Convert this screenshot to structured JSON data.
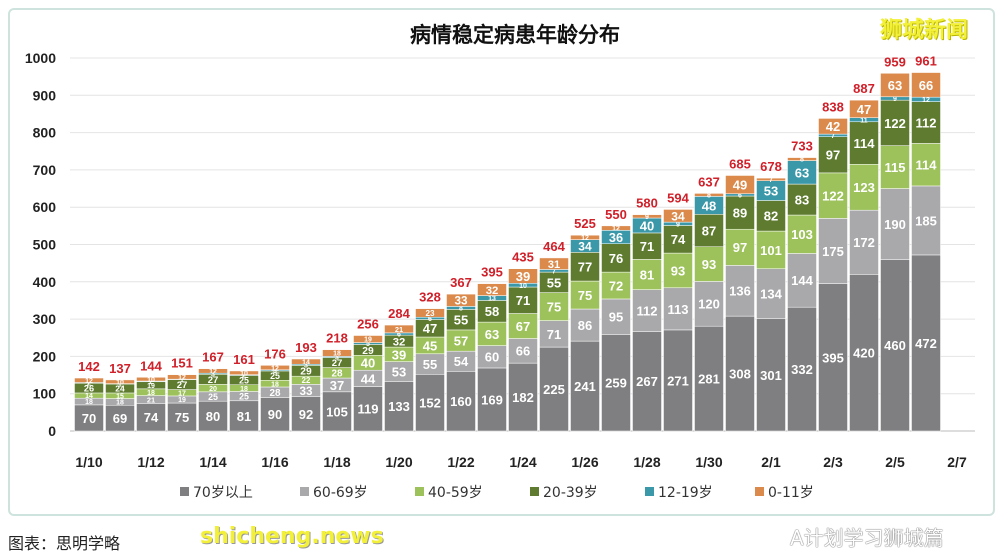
{
  "chart_data": {
    "type": "stacked-bar",
    "title": "病情稳定病患年龄分布",
    "xlabel": "",
    "ylabel": "",
    "ylim": [
      0,
      1000
    ],
    "yticks": [
      0,
      100,
      200,
      300,
      400,
      500,
      600,
      700,
      800,
      900,
      1000
    ],
    "grid": true,
    "legend_position": "bottom",
    "categories": [
      "1/10",
      "1/11",
      "1/12",
      "1/13",
      "1/14",
      "1/15",
      "1/16",
      "1/17",
      "1/18",
      "1/19",
      "1/20",
      "1/21",
      "1/22",
      "1/23",
      "1/24",
      "1/25",
      "1/26",
      "1/27",
      "1/28",
      "1/29",
      "1/30",
      "1/31",
      "2/1",
      "2/2",
      "2/3",
      "2/4",
      "2/5",
      "2/6"
    ],
    "xtick_labels": [
      "1/10",
      "1/12",
      "1/14",
      "1/16",
      "1/18",
      "1/20",
      "1/22",
      "1/24",
      "1/26",
      "1/28",
      "1/30",
      "2/1",
      "2/3",
      "2/5",
      "2/7"
    ],
    "totals": [
      142,
      137,
      144,
      151,
      167,
      161,
      176,
      193,
      218,
      256,
      284,
      328,
      367,
      395,
      435,
      464,
      525,
      550,
      580,
      594,
      637,
      685,
      678,
      733,
      838,
      887,
      959,
      961
    ],
    "series": [
      {
        "name": "70岁以上",
        "color": "#7f7f81",
        "values": [
          70,
          69,
          74,
          75,
          80,
          81,
          90,
          92,
          105,
          119,
          133,
          152,
          160,
          169,
          182,
          225,
          241,
          259,
          267,
          271,
          281,
          308,
          301,
          332,
          395,
          420,
          460,
          472
        ]
      },
      {
        "name": "60-69岁",
        "color": "#a9a9ac",
        "values": [
          18,
          18,
          21,
          19,
          25,
          25,
          28,
          33,
          37,
          44,
          53,
          55,
          54,
          60,
          66,
          71,
          86,
          95,
          112,
          113,
          120,
          136,
          134,
          144,
          175,
          172,
          190,
          185
        ]
      },
      {
        "name": "40-59岁",
        "color": "#9dc25c",
        "values": [
          14,
          15,
          18,
          17,
          20,
          18,
          18,
          22,
          28,
          40,
          39,
          45,
          57,
          63,
          67,
          75,
          75,
          72,
          81,
          93,
          93,
          97,
          101,
          103,
          122,
          123,
          115,
          114
        ]
      },
      {
        "name": "20-39岁",
        "color": "#5e7b30",
        "values": [
          26,
          24,
          19,
          27,
          27,
          25,
          25,
          29,
          27,
          29,
          32,
          47,
          55,
          58,
          71,
          55,
          77,
          76,
          71,
          74,
          87,
          89,
          82,
          83,
          97,
          114,
          122,
          112
        ]
      },
      {
        "name": "12-19岁",
        "color": "#3a98a8",
        "values": [
          2,
          1,
          2,
          1,
          3,
          2,
          3,
          3,
          3,
          5,
          6,
          6,
          8,
          13,
          10,
          7,
          34,
          36,
          40,
          9,
          48,
          6,
          53,
          63,
          7,
          11,
          9,
          12
        ]
      },
      {
        "name": "0-11岁",
        "color": "#db8a4c",
        "values": [
          12,
          10,
          10,
          12,
          12,
          10,
          12,
          14,
          18,
          19,
          21,
          23,
          33,
          32,
          39,
          31,
          12,
          12,
          9,
          34,
          8,
          49,
          7,
          8,
          42,
          47,
          63,
          66
        ]
      }
    ],
    "total_label_color": "#d0202a"
  },
  "watermarks": {
    "top_right": "狮城新闻",
    "bottom_right": "A计划学习狮城篇",
    "bottom_left": "shicheng.news"
  },
  "caption": "图表：思明学略"
}
